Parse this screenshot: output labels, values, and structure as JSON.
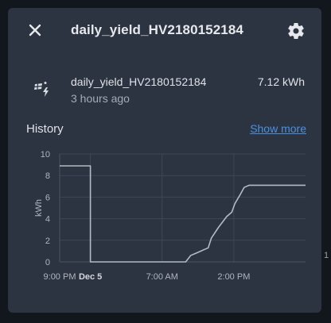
{
  "dialog": {
    "title": "daily_yield_HV2180152184",
    "close_icon": "close-icon",
    "settings_icon": "gear-icon"
  },
  "entity": {
    "icon": "solar-power-icon",
    "name": "daily_yield_HV2180152184",
    "last_changed": "3 hours ago",
    "value": "7.12 kWh"
  },
  "history": {
    "label": "History",
    "show_more": "Show more"
  },
  "stray_tick": "1",
  "colors": {
    "background": "#12161d",
    "dialog": "#2c3442",
    "text": "#dfe2e6",
    "link": "#4a90e2",
    "series": "#b4bac2"
  },
  "chart_data": {
    "type": "line",
    "ylabel": "kWh",
    "ylim": [
      0,
      10
    ],
    "yticks": [
      "0",
      "2",
      "4",
      "6",
      "8",
      "10"
    ],
    "xticks": [
      {
        "label": "9:00 PM",
        "hour": 0,
        "bold": false
      },
      {
        "label": "Dec 5",
        "hour": 3,
        "bold": true
      },
      {
        "label": "7:00 AM",
        "hour": 10,
        "bold": false
      },
      {
        "label": "2:00 PM",
        "hour": 17,
        "bold": false
      }
    ],
    "xlim": [
      0,
      24
    ],
    "series": [
      {
        "stepped": true,
        "points": [
          [
            0,
            8.9
          ],
          [
            3,
            8.9
          ],
          [
            3,
            0
          ],
          [
            12.3,
            0
          ],
          [
            12.8,
            0.6
          ],
          [
            13.3,
            0.8
          ],
          [
            14.5,
            1.3
          ],
          [
            14.8,
            2.2
          ],
          [
            15.5,
            3.2
          ],
          [
            16.3,
            4.2
          ],
          [
            16.8,
            4.6
          ],
          [
            17.1,
            5.4
          ],
          [
            17.6,
            6.2
          ],
          [
            18.0,
            6.9
          ],
          [
            18.5,
            7.1
          ],
          [
            24,
            7.1
          ]
        ]
      }
    ]
  }
}
